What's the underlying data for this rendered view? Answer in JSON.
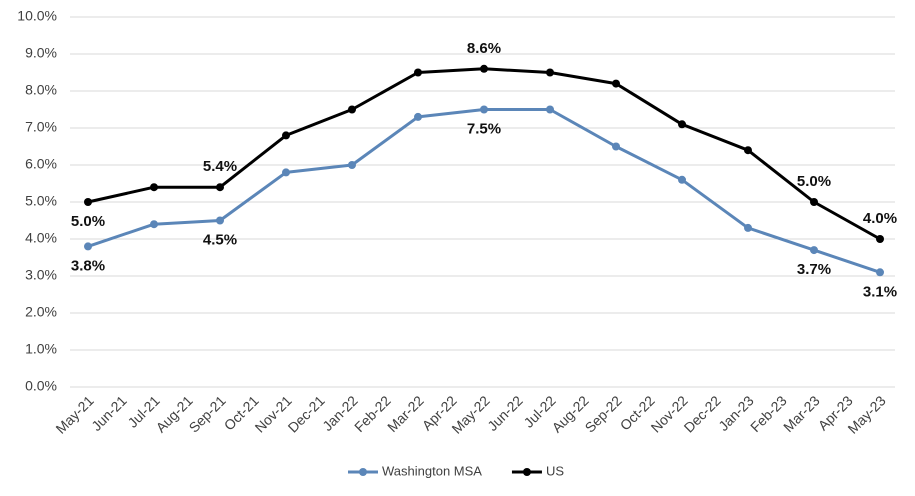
{
  "chart_data": {
    "type": "line",
    "categories": [
      "May-21",
      "Jun-21",
      "Jul-21",
      "Aug-21",
      "Sep-21",
      "Oct-21",
      "Nov-21",
      "Dec-21",
      "Jan-22",
      "Feb-22",
      "Mar-22",
      "Apr-22",
      "May-22",
      "Jun-22",
      "Jul-22",
      "Aug-22",
      "Sep-22",
      "Oct-22",
      "Nov-22",
      "Dec-22",
      "Jan-23",
      "Feb-23",
      "Mar-23",
      "Apr-23",
      "May-23"
    ],
    "x": [
      "May-21",
      "Jul-21",
      "Sep-21",
      "Nov-21",
      "Jan-22",
      "Mar-22",
      "May-22",
      "Jul-22",
      "Sep-22",
      "Nov-22",
      "Jan-23",
      "Mar-23",
      "May-23"
    ],
    "series": [
      {
        "name": "Washington MSA",
        "color": "#5b86b8",
        "values": [
          3.8,
          4.4,
          4.5,
          5.8,
          6.0,
          7.3,
          7.5,
          7.5,
          6.5,
          5.6,
          4.3,
          3.7,
          3.1
        ],
        "value_labels": [
          "3.8%",
          null,
          "4.5%",
          null,
          null,
          null,
          "7.5%",
          null,
          null,
          null,
          null,
          "3.7%",
          "3.1%"
        ]
      },
      {
        "name": "US",
        "color": "#000000",
        "values": [
          5.0,
          5.4,
          5.4,
          6.8,
          7.5,
          8.5,
          8.6,
          8.5,
          8.2,
          7.1,
          6.4,
          5.0,
          4.0
        ],
        "value_labels": [
          "5.0%",
          null,
          "5.4%",
          null,
          null,
          null,
          "8.6%",
          null,
          null,
          null,
          null,
          "5.0%",
          "4.0%"
        ]
      }
    ],
    "ylim": [
      0,
      10
    ],
    "yticks": [
      {
        "value": 0,
        "label": "0.0%"
      },
      {
        "value": 1,
        "label": "1.0%"
      },
      {
        "value": 2,
        "label": "2.0%"
      },
      {
        "value": 3,
        "label": "3.0%"
      },
      {
        "value": 4,
        "label": "4.0%"
      },
      {
        "value": 5,
        "label": "5.0%"
      },
      {
        "value": 6,
        "label": "6.0%"
      },
      {
        "value": 7,
        "label": "7.0%"
      },
      {
        "value": 8,
        "label": "8.0%"
      },
      {
        "value": 9,
        "label": "9.0%"
      },
      {
        "value": 10,
        "label": "10.0%"
      }
    ],
    "grid": true,
    "legend": "bottom"
  }
}
